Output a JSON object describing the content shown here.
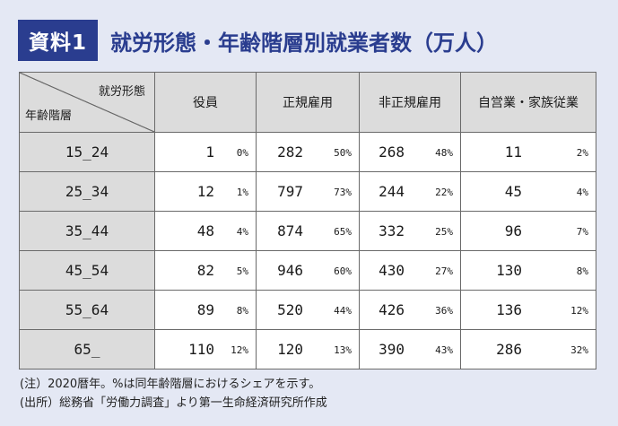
{
  "badge": "資料1",
  "title": "就労形態・年齢階層別就業者数（万人）",
  "table": {
    "corner_top": "就労形態",
    "corner_bottom": "年齢階層",
    "columns": [
      "役員",
      "正規雇用",
      "非正規雇用",
      "自営業・家族従業"
    ],
    "rows": [
      {
        "age": "15_24",
        "cells": [
          {
            "n": "1",
            "p": "0%"
          },
          {
            "n": "282",
            "p": "50%"
          },
          {
            "n": "268",
            "p": "48%"
          },
          {
            "n": "11",
            "p": "2%"
          }
        ]
      },
      {
        "age": "25_34",
        "cells": [
          {
            "n": "12",
            "p": "1%"
          },
          {
            "n": "797",
            "p": "73%"
          },
          {
            "n": "244",
            "p": "22%"
          },
          {
            "n": "45",
            "p": "4%"
          }
        ]
      },
      {
        "age": "35_44",
        "cells": [
          {
            "n": "48",
            "p": "4%"
          },
          {
            "n": "874",
            "p": "65%"
          },
          {
            "n": "332",
            "p": "25%"
          },
          {
            "n": "96",
            "p": "7%"
          }
        ]
      },
      {
        "age": "45_54",
        "cells": [
          {
            "n": "82",
            "p": "5%"
          },
          {
            "n": "946",
            "p": "60%"
          },
          {
            "n": "430",
            "p": "27%"
          },
          {
            "n": "130",
            "p": "8%"
          }
        ]
      },
      {
        "age": "55_64",
        "cells": [
          {
            "n": "89",
            "p": "8%"
          },
          {
            "n": "520",
            "p": "44%"
          },
          {
            "n": "426",
            "p": "36%"
          },
          {
            "n": "136",
            "p": "12%"
          }
        ]
      },
      {
        "age": "65_",
        "cells": [
          {
            "n": "110",
            "p": "12%"
          },
          {
            "n": "120",
            "p": "13%"
          },
          {
            "n": "390",
            "p": "43%"
          },
          {
            "n": "286",
            "p": "32%"
          }
        ]
      }
    ]
  },
  "notes": [
    "(注）2020暦年。%は同年齢階層におけるシェアを示す。",
    "(出所）総務省「労働力調査」より第一生命経済研究所作成"
  ],
  "colors": {
    "accent": "#2a3d8f",
    "header_bg": "#dcdcdc",
    "page_bg": "#e4e8f4"
  }
}
